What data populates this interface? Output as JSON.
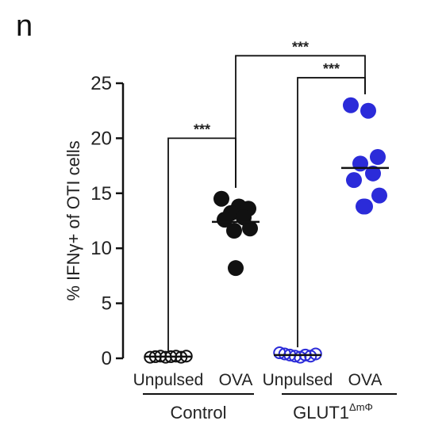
{
  "panel_label": "n",
  "chart_data": {
    "type": "scatter",
    "ylabel": "% IFNγ+ of OTI cells",
    "ylim": [
      0,
      25
    ],
    "yticks": [
      0,
      5,
      10,
      15,
      20,
      25
    ],
    "categories": [
      "Unpulsed",
      "OVA",
      "Unpulsed",
      "OVA"
    ],
    "groups": [
      {
        "label": "Control",
        "label_sup": ""
      },
      {
        "label": "GLUT1",
        "label_sup": "ΔmΦ"
      }
    ],
    "series": [
      {
        "category_index": 0,
        "group": "Control",
        "marker": "open-circle",
        "color": "#111111",
        "values": [
          0.1,
          0.15,
          0.2,
          0.1,
          0.15,
          0.2,
          0.1,
          0.2
        ],
        "mean": 0.15
      },
      {
        "category_index": 1,
        "group": "Control",
        "marker": "filled-circle",
        "color": "#111111",
        "values": [
          14.5,
          13.8,
          13.6,
          13.2,
          12.8,
          12.6,
          11.8,
          11.6,
          8.2
        ],
        "mean": 12.4
      },
      {
        "category_index": 2,
        "group": "GLUT1",
        "marker": "open-circle",
        "color": "#2b2bd9",
        "values": [
          0.5,
          0.4,
          0.3,
          0.2,
          0.1,
          0.3,
          0.2,
          0.4
        ],
        "mean": 0.3
      },
      {
        "category_index": 3,
        "group": "GLUT1",
        "marker": "filled-circle",
        "color": "#2b2bd9",
        "values": [
          23.0,
          22.5,
          18.3,
          17.7,
          16.8,
          16.2,
          14.8,
          13.8,
          13.8
        ],
        "mean": 17.3
      }
    ],
    "significance": [
      {
        "from": 0,
        "to": 1,
        "label": "***",
        "y": 20
      },
      {
        "from": 2,
        "to": 3,
        "label": "***",
        "y": 25.5
      },
      {
        "from": 1,
        "to": 3,
        "label": "***",
        "y": 27.5
      }
    ]
  }
}
